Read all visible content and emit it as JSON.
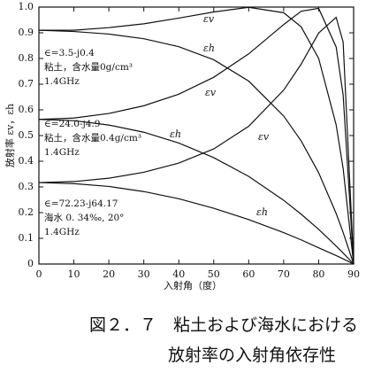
{
  "chart_data": {
    "type": "line",
    "x_label": "入射角（度）",
    "y_label": "放射率 εv，εh",
    "caption": [
      "図２．７　粘土および海水における",
      "放射率の入射角依存性"
    ],
    "annotations": [
      [
        "∈=3.5-j0.4",
        "粘土，含水量0g/cm³",
        "1.4GHz"
      ],
      [
        "∈=24.0-j4.9",
        "粘土，含水量0.4g/cm³",
        "1.4GHz"
      ],
      [
        "∈=72.23-j64.17",
        "海水 0. 34‰, 20°",
        "1.4GHz"
      ]
    ],
    "x": [
      0,
      10,
      20,
      30,
      40,
      50,
      60,
      70,
      75,
      80,
      85,
      87,
      90
    ],
    "series": [
      {
        "name": "εv",
        "color": "#111111",
        "values": [
          0.91,
          0.91,
          0.92,
          0.935,
          0.957,
          0.981,
          0.999,
          0.978,
          0.923,
          0.8,
          0.542,
          0.372,
          0
        ]
      },
      {
        "name": "εh",
        "color": "#111111",
        "values": [
          0.91,
          0.905,
          0.895,
          0.877,
          0.846,
          0.795,
          0.712,
          0.576,
          0.479,
          0.355,
          0.197,
          0.123,
          0
        ]
      },
      {
        "name": "εv",
        "color": "#111111",
        "values": [
          0.563,
          0.568,
          0.586,
          0.616,
          0.661,
          0.727,
          0.818,
          0.932,
          0.984,
          0.995,
          0.845,
          0.658,
          0
        ]
      },
      {
        "name": "εh",
        "color": "#111111",
        "values": [
          0.563,
          0.558,
          0.541,
          0.513,
          0.471,
          0.414,
          0.341,
          0.248,
          0.194,
          0.135,
          0.07,
          0.043,
          0
        ]
      },
      {
        "name": "εv",
        "color": "#111111",
        "values": [
          0.317,
          0.321,
          0.334,
          0.357,
          0.393,
          0.448,
          0.536,
          0.677,
          0.778,
          0.899,
          0.96,
          0.864,
          0
        ]
      },
      {
        "name": "εh",
        "color": "#111111",
        "values": [
          0.317,
          0.313,
          0.302,
          0.282,
          0.254,
          0.217,
          0.173,
          0.122,
          0.094,
          0.063,
          0.033,
          0.02,
          0
        ]
      }
    ],
    "xlim": [
      0,
      90
    ],
    "ylim": [
      0,
      1.0
    ],
    "xticks": [
      0,
      10,
      20,
      30,
      40,
      50,
      60,
      70,
      80,
      90
    ],
    "yticks": [
      0,
      0.1,
      0.2,
      0.3,
      0.4,
      0.5,
      0.6,
      0.7,
      0.8,
      0.9,
      {
        "value": 1.0,
        "label": "1.0"
      }
    ],
    "grid": false
  }
}
